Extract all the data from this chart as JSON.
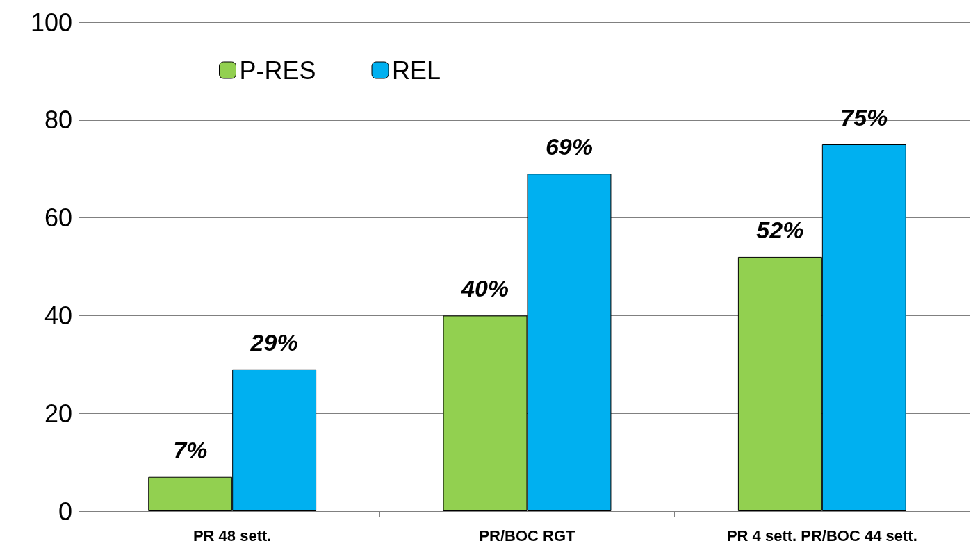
{
  "chart_data": {
    "type": "bar",
    "categories": [
      "PR 48 sett.",
      "PR/BOC RGT",
      "PR 4 sett. PR/BOC 44 sett."
    ],
    "series": [
      {
        "name": "P-RES",
        "color": "#92d050",
        "values": [
          7,
          40,
          52
        ],
        "value_labels": [
          "7%",
          "40%",
          "52%"
        ]
      },
      {
        "name": "REL",
        "color": "#00b0f0",
        "values": [
          29,
          69,
          75
        ],
        "value_labels": [
          "29%",
          "69%",
          "75%"
        ]
      }
    ],
    "ylim": [
      0,
      100
    ],
    "yticks": [
      0,
      20,
      40,
      60,
      80,
      100
    ],
    "grid": "y",
    "legend": "top left"
  }
}
